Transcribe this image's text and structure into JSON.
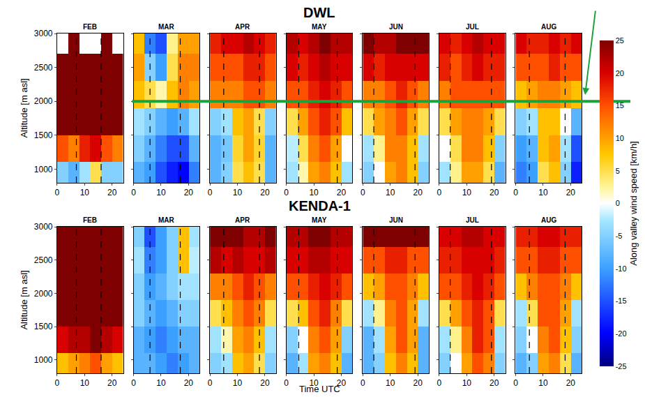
{
  "chart_data": {
    "type": "heatmap",
    "x_label": "Time UTC",
    "y_label": "Altitude [m asl]",
    "x": [
      2,
      6,
      10,
      14,
      18,
      22
    ],
    "y": [
      900,
      1300,
      1700,
      2100,
      2500,
      2900
    ],
    "xlim": [
      0,
      24
    ],
    "xticks": [
      0,
      10,
      20
    ],
    "ylim": [
      800,
      3000
    ],
    "yticks": [
      1000,
      1500,
      2000,
      2500,
      3000
    ],
    "colorbar": {
      "title": "Along valley wind speed [km/h]",
      "range": [
        -25,
        25
      ],
      "ticks": [
        25,
        20,
        15,
        10,
        5,
        0,
        -5,
        -10,
        -15,
        -20,
        -25
      ]
    },
    "reference_altitude": 2000,
    "rows": [
      {
        "title": "DWL",
        "panels": [
          {
            "title": "FEB",
            "dashed_lines": [
              7,
              16
            ],
            "cells": [
              [
                -5,
                -8,
                -3,
                5,
                -5,
                -5
              ],
              [
                15,
                12,
                18,
                20,
                15,
                12
              ],
              [
                25,
                25,
                25,
                25,
                25,
                25
              ],
              [
                25,
                25,
                25,
                25,
                25,
                25
              ],
              [
                25,
                25,
                25,
                25,
                25,
                25
              ],
              [
                null,
                25,
                null,
                null,
                25,
                null
              ]
            ]
          },
          {
            "title": "MAR",
            "dashed_lines": [
              6,
              17
            ],
            "cells": [
              [
                -8,
                -10,
                -15,
                -18,
                -20,
                -12
              ],
              [
                -5,
                -8,
                -12,
                -15,
                -15,
                -8
              ],
              [
                -3,
                -5,
                -8,
                -10,
                -8,
                -3
              ],
              [
                8,
                5,
                2,
                8,
                12,
                10
              ],
              [
                10,
                -5,
                -10,
                5,
                12,
                12
              ],
              [
                8,
                -12,
                -15,
                3,
                10,
                10
              ]
            ]
          },
          {
            "title": "APR",
            "dashed_lines": [
              5,
              18
            ],
            "cells": [
              [
                -8,
                -5,
                5,
                8,
                5,
                -8
              ],
              [
                -8,
                -6,
                6,
                10,
                6,
                -8
              ],
              [
                -5,
                -3,
                8,
                10,
                5,
                -5
              ],
              [
                12,
                12,
                12,
                15,
                15,
                12
              ],
              [
                15,
                15,
                15,
                18,
                18,
                15
              ],
              [
                18,
                20,
                20,
                22,
                20,
                18
              ]
            ]
          },
          {
            "title": "MAY",
            "dashed_lines": [
              4.5,
              18.5
            ],
            "cells": [
              [
                -3,
                2,
                10,
                12,
                8,
                -3
              ],
              [
                -2,
                5,
                12,
                15,
                10,
                0
              ],
              [
                5,
                10,
                15,
                18,
                15,
                8
              ],
              [
                15,
                15,
                18,
                20,
                18,
                15
              ],
              [
                20,
                18,
                20,
                22,
                20,
                20
              ],
              [
                22,
                20,
                22,
                25,
                22,
                22
              ]
            ]
          },
          {
            "title": "JUN",
            "dashed_lines": [
              4,
              19
            ],
            "cells": [
              [
                -5,
                0,
                10,
                12,
                8,
                -5
              ],
              [
                -3,
                3,
                12,
                12,
                8,
                -3
              ],
              [
                5,
                10,
                12,
                15,
                10,
                5
              ],
              [
                12,
                12,
                15,
                18,
                15,
                12
              ],
              [
                20,
                18,
                20,
                20,
                20,
                20
              ],
              [
                25,
                22,
                22,
                25,
                25,
                25
              ]
            ]
          },
          {
            "title": "JUL",
            "dashed_lines": [
              4,
              19
            ],
            "cells": [
              [
                -3,
                3,
                10,
                10,
                5,
                -8
              ],
              [
                0,
                5,
                12,
                12,
                8,
                -5
              ],
              [
                5,
                10,
                12,
                12,
                10,
                5
              ],
              [
                12,
                15,
                15,
                15,
                15,
                15
              ],
              [
                18,
                15,
                18,
                20,
                18,
                18
              ],
              [
                20,
                18,
                20,
                22,
                20,
                20
              ]
            ]
          },
          {
            "title": "AUG",
            "dashed_lines": [
              5,
              18
            ],
            "cells": [
              [
                -12,
                -10,
                5,
                8,
                -5,
                -18
              ],
              [
                -10,
                -8,
                8,
                10,
                -3,
                -15
              ],
              [
                -5,
                -3,
                8,
                8,
                0,
                -8
              ],
              [
                8,
                10,
                12,
                12,
                10,
                8
              ],
              [
                15,
                15,
                15,
                18,
                15,
                15
              ],
              [
                20,
                18,
                18,
                20,
                18,
                20
              ]
            ]
          }
        ]
      },
      {
        "title": "KENDA-1",
        "panels": [
          {
            "title": "FEB",
            "dashed_lines": [
              7,
              16
            ],
            "cells": [
              [
                8,
                10,
                12,
                15,
                10,
                8
              ],
              [
                20,
                22,
                22,
                25,
                22,
                20
              ],
              [
                25,
                25,
                25,
                25,
                25,
                25
              ],
              [
                25,
                25,
                25,
                25,
                25,
                25
              ],
              [
                25,
                25,
                25,
                25,
                25,
                25
              ],
              [
                25,
                25,
                25,
                25,
                25,
                25
              ]
            ]
          },
          {
            "title": "MAR",
            "dashed_lines": [
              6,
              17
            ],
            "cells": [
              [
                -8,
                -8,
                -10,
                -12,
                -10,
                -8
              ],
              [
                -8,
                -10,
                -12,
                -10,
                -8,
                -8
              ],
              [
                -5,
                -8,
                -10,
                -8,
                -5,
                -5
              ],
              [
                -5,
                -10,
                -8,
                -5,
                -3,
                -3
              ],
              [
                -3,
                -12,
                -10,
                -5,
                8,
                -2
              ],
              [
                -5,
                -15,
                -10,
                -5,
                8,
                -3
              ]
            ]
          },
          {
            "title": "APR",
            "dashed_lines": [
              5,
              18
            ],
            "cells": [
              [
                -5,
                -3,
                8,
                10,
                5,
                -5
              ],
              [
                -3,
                2,
                10,
                12,
                8,
                -3
              ],
              [
                5,
                8,
                12,
                15,
                12,
                5
              ],
              [
                12,
                12,
                15,
                18,
                15,
                12
              ],
              [
                22,
                20,
                22,
                20,
                20,
                22
              ],
              [
                25,
                25,
                25,
                22,
                22,
                25
              ]
            ]
          },
          {
            "title": "MAY",
            "dashed_lines": [
              4.5,
              18.5
            ],
            "cells": [
              [
                -8,
                -3,
                10,
                12,
                8,
                -8
              ],
              [
                -5,
                0,
                12,
                15,
                10,
                -5
              ],
              [
                5,
                8,
                15,
                18,
                12,
                5
              ],
              [
                15,
                15,
                18,
                20,
                18,
                15
              ],
              [
                20,
                20,
                22,
                22,
                20,
                20
              ],
              [
                22,
                22,
                25,
                25,
                22,
                22
              ]
            ]
          },
          {
            "title": "JUN",
            "dashed_lines": [
              4,
              19
            ],
            "cells": [
              [
                -8,
                -5,
                8,
                12,
                8,
                -8
              ],
              [
                -8,
                -3,
                10,
                15,
                10,
                -8
              ],
              [
                -3,
                3,
                12,
                15,
                10,
                -3
              ],
              [
                8,
                10,
                15,
                15,
                12,
                8
              ],
              [
                15,
                15,
                18,
                18,
                15,
                15
              ],
              [
                25,
                25,
                25,
                25,
                25,
                25
              ]
            ]
          },
          {
            "title": "JUL",
            "dashed_lines": [
              4,
              19
            ],
            "cells": [
              [
                -5,
                0,
                10,
                15,
                12,
                -5
              ],
              [
                -3,
                3,
                12,
                18,
                15,
                -3
              ],
              [
                5,
                10,
                15,
                18,
                15,
                5
              ],
              [
                15,
                15,
                18,
                20,
                18,
                15
              ],
              [
                18,
                18,
                20,
                20,
                20,
                18
              ],
              [
                20,
                20,
                22,
                22,
                20,
                20
              ]
            ]
          },
          {
            "title": "AUG",
            "dashed_lines": [
              5,
              18
            ],
            "cells": [
              [
                -8,
                -5,
                10,
                12,
                5,
                -8
              ],
              [
                -5,
                0,
                12,
                15,
                8,
                -5
              ],
              [
                -3,
                5,
                15,
                15,
                10,
                -3
              ],
              [
                8,
                12,
                15,
                15,
                12,
                8
              ],
              [
                15,
                15,
                18,
                18,
                15,
                15
              ],
              [
                18,
                18,
                20,
                20,
                18,
                18
              ]
            ]
          }
        ]
      }
    ]
  }
}
